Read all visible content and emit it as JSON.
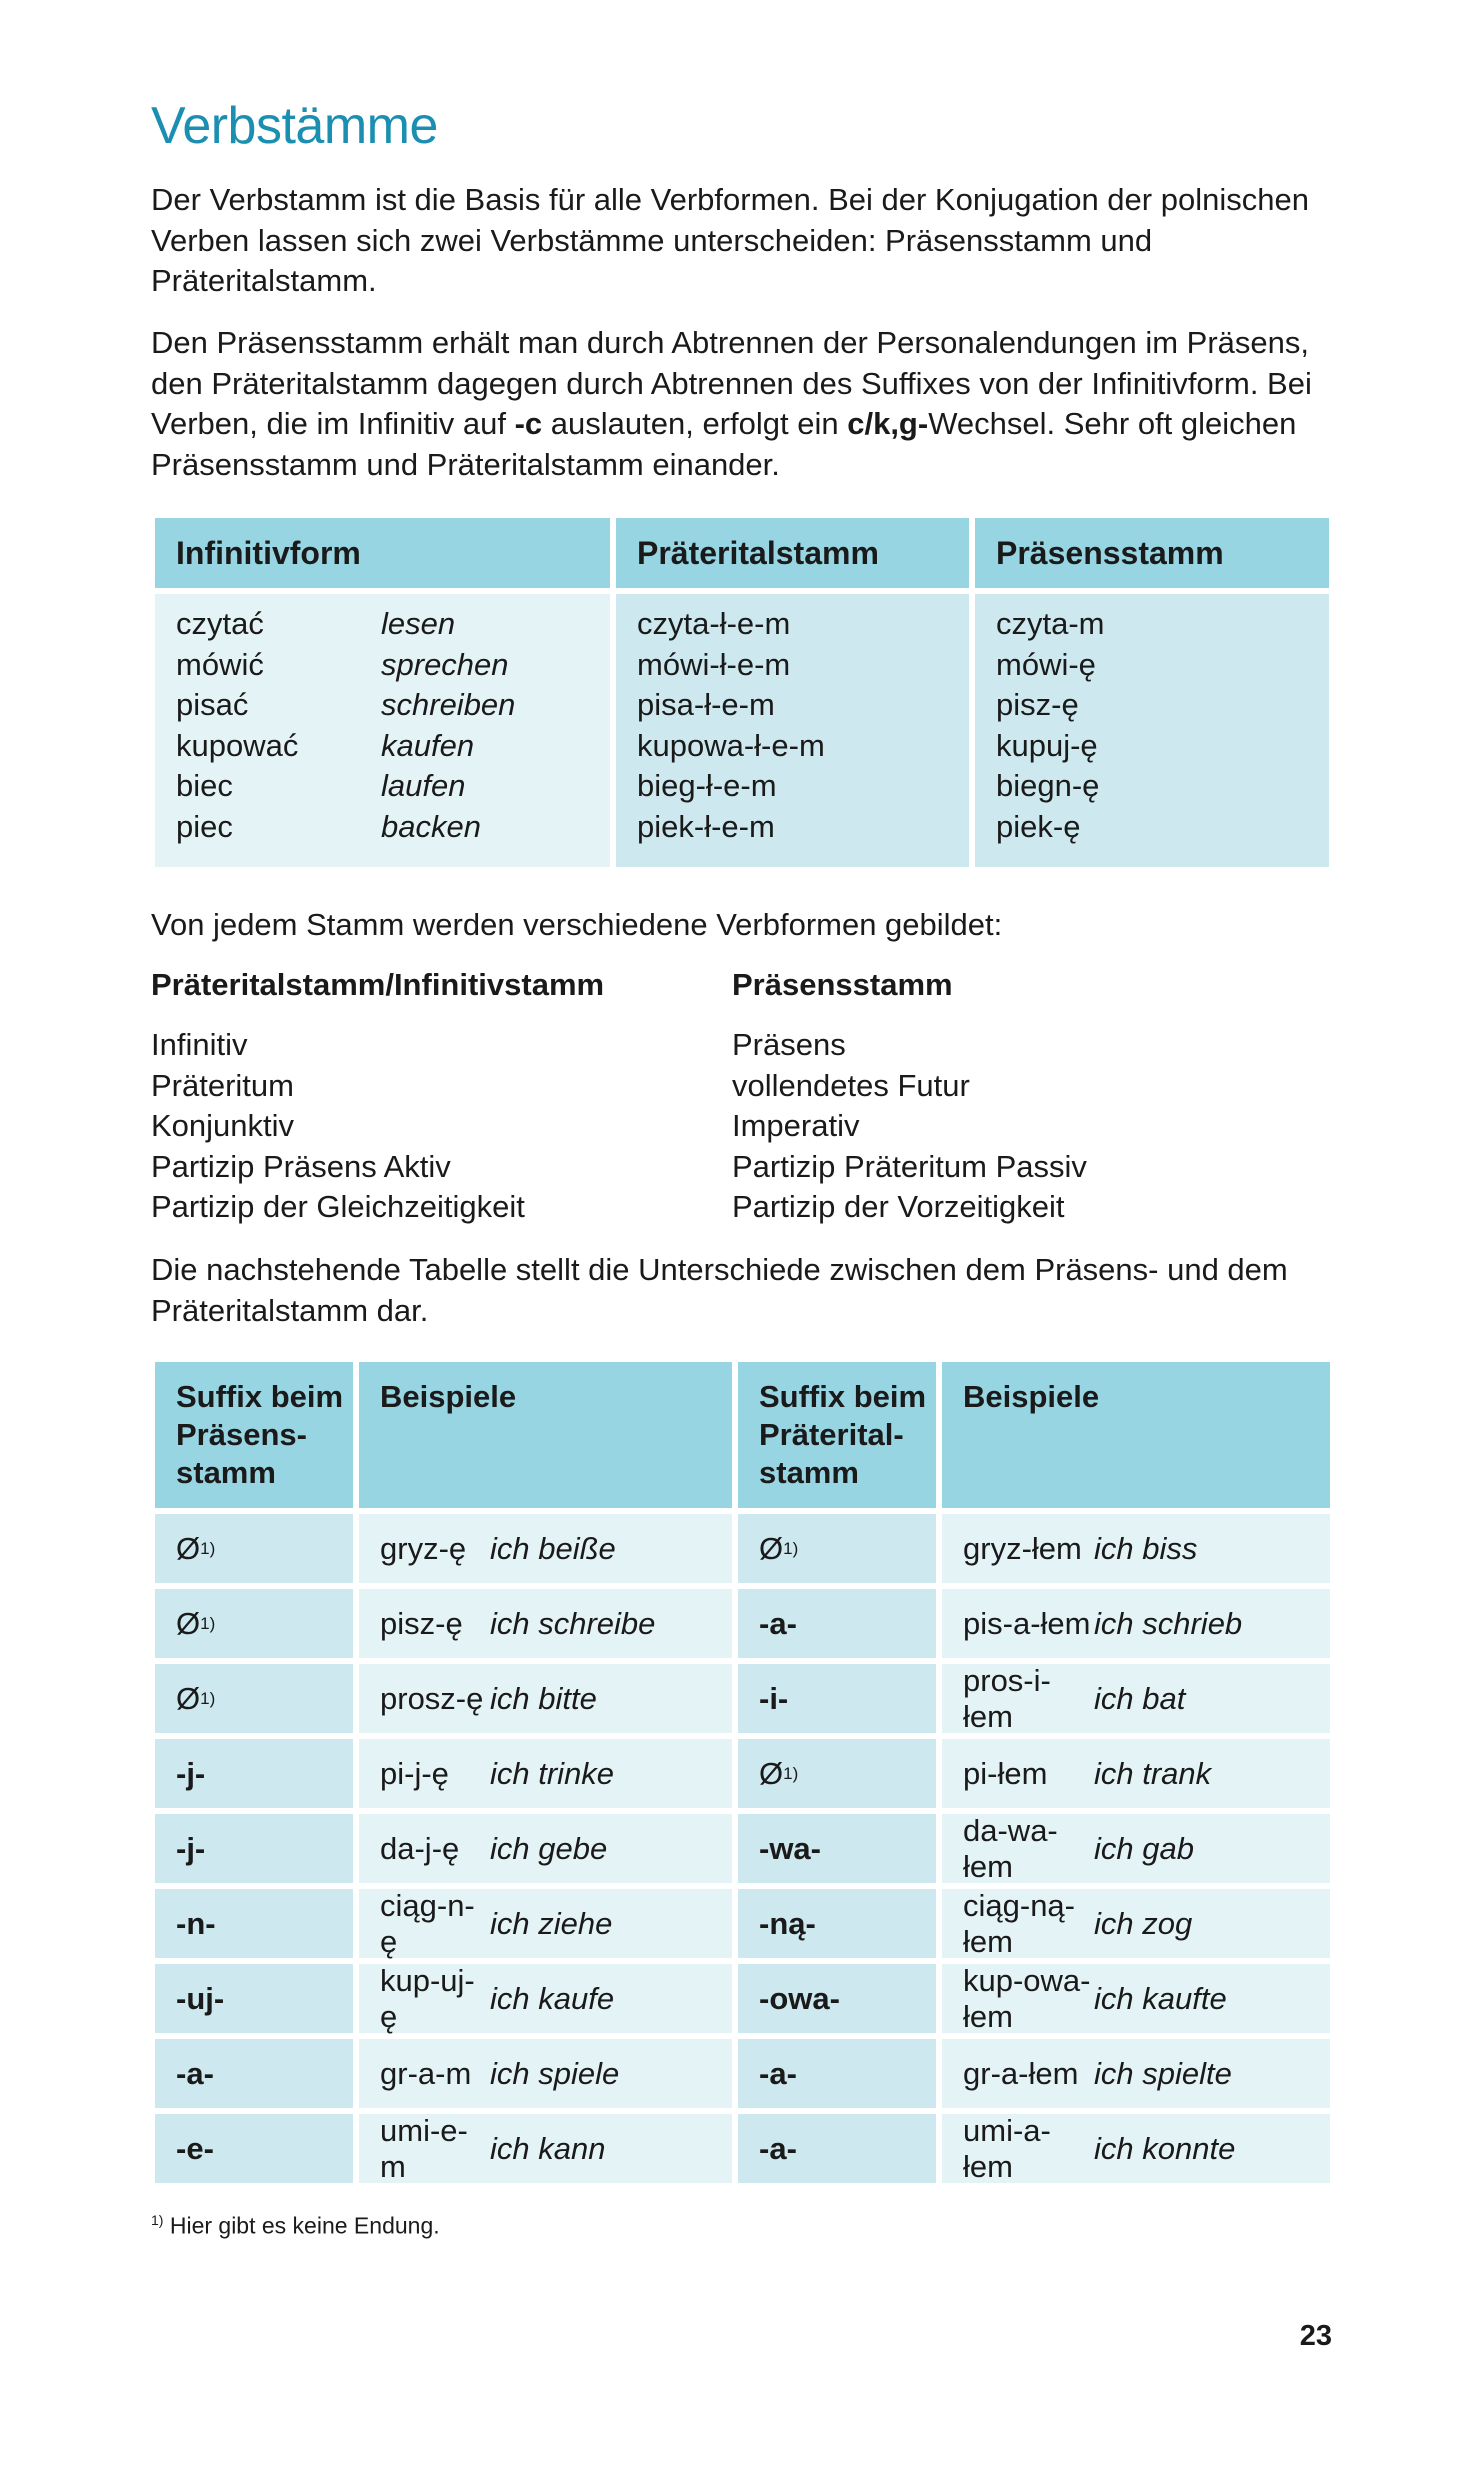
{
  "title": "Verbstämme",
  "paragraphs": {
    "p1": "Der Verbstamm ist die Basis für alle Verbformen. Bei der Konjugation der polnischen Verben lassen sich zwei Verbstämme unterscheiden: Präsensstamm und Präteritalstamm.",
    "p2_a": "Den Präsensstamm erhält man durch Abtrennen der Personalendungen im Präsens, den Präteritalstamm dagegen durch Abtrennen des Suffixes von der Infinitivform. Bei Verben, die im Infinitiv auf ",
    "p2_b": "-c",
    "p2_c": " auslauten, erfolgt ein ",
    "p2_d": "c/k,g-",
    "p2_e": "Wechsel. Sehr oft gleichen Präsensstamm und Präteritalstamm einander.",
    "p3": "Von jedem Stamm werden verschiedene Verbformen gebildet:",
    "p4": "Die nachstehende Tabelle stellt die Unterschiede zwischen dem Präsens- und dem Präteritalstamm dar."
  },
  "table1": {
    "headers": [
      "Infinitivform",
      "Präteritalstamm",
      "Präsensstamm"
    ],
    "rows": [
      {
        "inf": "czytać",
        "de": "lesen",
        "prt": "czyta-ł-e-m",
        "prs": "czyta-m"
      },
      {
        "inf": "mówić",
        "de": "sprechen",
        "prt": "mówi-ł-e-m",
        "prs": "mówi-ę"
      },
      {
        "inf": "pisać",
        "de": "schreiben",
        "prt": "pisa-ł-e-m",
        "prs": "pisz-ę"
      },
      {
        "inf": "kupować",
        "de": "kaufen",
        "prt": "kupowa-ł-e-m",
        "prs": "kupuj-ę"
      },
      {
        "inf": "biec",
        "de": "laufen",
        "prt": "bieg-ł-e-m",
        "prs": "biegn-ę"
      },
      {
        "inf": "piec",
        "de": "backen",
        "prt": "piek-ł-e-m",
        "prs": "piek-ę"
      }
    ]
  },
  "forms": {
    "left_heading": "Präteritalstamm/Infinitivstamm",
    "right_heading": "Präsensstamm",
    "left": [
      "Infinitiv",
      "Präteritum",
      "Konjunktiv",
      "Partizip Präsens Aktiv",
      "Partizip der Gleichzeitigkeit"
    ],
    "right": [
      "Präsens",
      "vollendetes Futur",
      "Imperativ",
      "Partizip Präteritum Passiv",
      "Partizip der Vorzeitigkeit"
    ]
  },
  "table2": {
    "headers": [
      "Suffix beim Präsens-stamm",
      "Beispiele",
      "Suffix beim Präterital-stamm",
      "Beispiele"
    ],
    "header_lines": {
      "h1": [
        "Suffix beim",
        "Präsens-",
        "stamm"
      ],
      "h2": "Beispiele",
      "h3": [
        "Suffix beim",
        "Präterital-",
        "stamm"
      ],
      "h4": "Beispiele"
    },
    "footnote_mark": "1)",
    "rows": [
      {
        "s1": "Ø",
        "s1_note": true,
        "ex1": "gryz-ę",
        "de1": "ich beiße",
        "s2": "Ø",
        "s2_note": true,
        "ex2": "gryz-łem",
        "de2": "ich biss"
      },
      {
        "s1": "Ø",
        "s1_note": true,
        "ex1": "pisz-ę",
        "de1": "ich schreibe",
        "s2": "-a-",
        "s2_note": false,
        "ex2": "pis-a-łem",
        "de2": "ich schrieb"
      },
      {
        "s1": "Ø",
        "s1_note": true,
        "ex1": "prosz-ę",
        "de1": "ich bitte",
        "s2": "-i-",
        "s2_note": false,
        "ex2": "pros-i-łem",
        "de2": "ich bat"
      },
      {
        "s1": "-j-",
        "s1_note": false,
        "ex1": "pi-j-ę",
        "de1": "ich trinke",
        "s2": "Ø",
        "s2_note": true,
        "ex2": "pi-łem",
        "de2": "ich trank"
      },
      {
        "s1": "-j-",
        "s1_note": false,
        "ex1": "da-j-ę",
        "de1": "ich gebe",
        "s2": "-wa-",
        "s2_note": false,
        "ex2": "da-wa-łem",
        "de2": "ich gab"
      },
      {
        "s1": "-n-",
        "s1_note": false,
        "ex1": "ciąg-n-ę",
        "de1": "ich ziehe",
        "s2": "-ną-",
        "s2_note": false,
        "ex2": "ciąg-ną-łem",
        "de2": "ich zog"
      },
      {
        "s1": "-uj-",
        "s1_note": false,
        "ex1": "kup-uj-ę",
        "de1": "ich kaufe",
        "s2": "-owa-",
        "s2_note": false,
        "ex2": "kup-owa-łem",
        "de2": "ich kaufte"
      },
      {
        "s1": "-a-",
        "s1_note": false,
        "ex1": "gr-a-m",
        "de1": "ich spiele",
        "s2": "-a-",
        "s2_note": false,
        "ex2": "gr-a-łem",
        "de2": "ich spielte"
      },
      {
        "s1": "-e-",
        "s1_note": false,
        "ex1": "umi-e-m",
        "de1": "ich kann",
        "s2": "-a-",
        "s2_note": false,
        "ex2": "umi-a-łem",
        "de2": "ich konnte"
      }
    ]
  },
  "footnote": {
    "mark": "1)",
    "text": "Hier gibt es keine Endung."
  },
  "page_number": "23",
  "colors": {
    "title": "#1b8fb2",
    "header_bg": "#97d5e2",
    "cell_light": "#e4f3f6",
    "cell_mid": "#cde9ef"
  }
}
